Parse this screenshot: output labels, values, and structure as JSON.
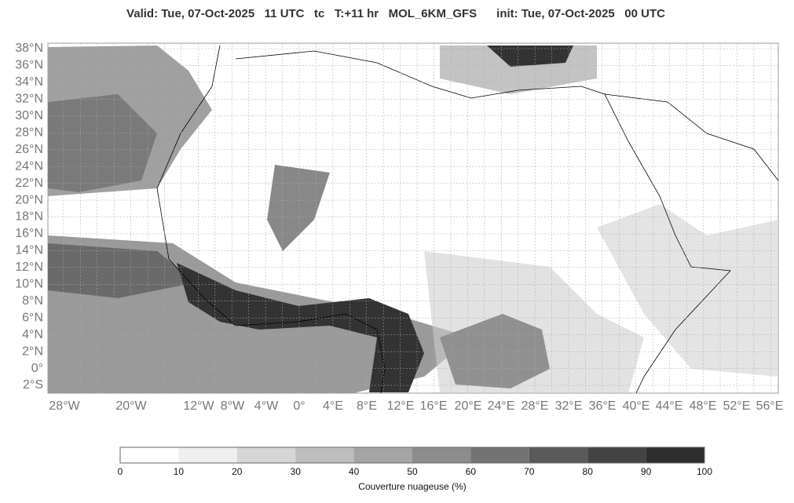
{
  "header": {
    "title": "Valid: Tue, 07-Oct-2025   11 UTC   tc   T:+11 hr   MOL_6KM_GFS      init: Tue, 07-Oct-2025   00 UTC"
  },
  "map": {
    "lat_labels": [
      "38°N",
      "36°N",
      "34°N",
      "32°N",
      "30°N",
      "28°N",
      "26°N",
      "24°N",
      "22°N",
      "20°N",
      "18°N",
      "16°N",
      "14°N",
      "12°N",
      "10°N",
      "8°N",
      "6°N",
      "4°N",
      "2°N",
      "0°",
      "2°S"
    ],
    "lon_labels": [
      "28°W",
      "20°W",
      "12°W",
      "8°W",
      "4°W",
      "0°",
      "4°E",
      "8°E",
      "12°E",
      "16°E",
      "20°E",
      "24°E",
      "28°E",
      "32°E",
      "36°E",
      "40°E",
      "44°E",
      "48°E",
      "52°E",
      "56°E"
    ]
  },
  "colorbar": {
    "ticks": [
      0,
      10,
      20,
      30,
      40,
      50,
      60,
      70,
      80,
      90,
      100
    ],
    "colors": [
      "#ffffff",
      "#efefef",
      "#d6d6d6",
      "#bdbdbd",
      "#a5a5a5",
      "#8c8c8c",
      "#737373",
      "#5a5a5a",
      "#434343",
      "#2e2e2e"
    ],
    "label": "Couverture nuageuse (%)"
  }
}
